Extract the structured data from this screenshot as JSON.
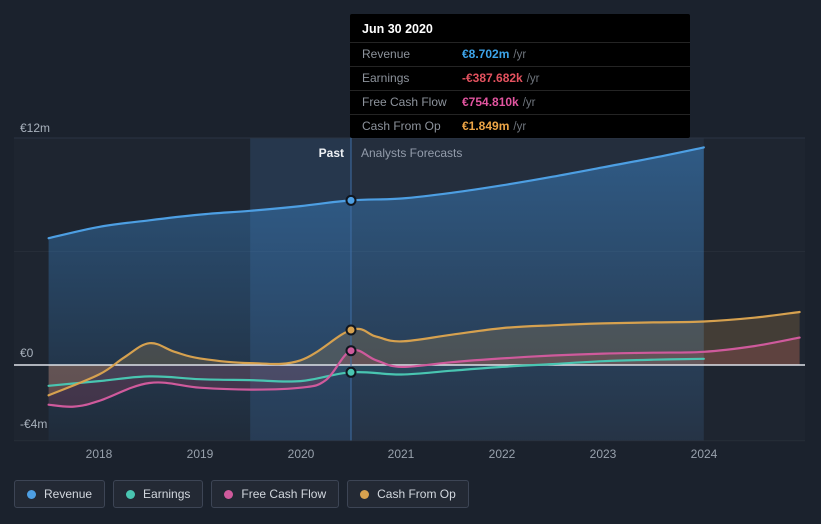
{
  "tooltip": {
    "title": "Jun 30 2020",
    "rows": [
      {
        "label": "Revenue",
        "value": "€8.702m",
        "unit": "/yr",
        "color": "#3da4ea"
      },
      {
        "label": "Earnings",
        "value": "-€387.682k",
        "unit": "/yr",
        "color": "#e4525f"
      },
      {
        "label": "Free Cash Flow",
        "value": "€754.810k",
        "unit": "/yr",
        "color": "#e255a0"
      },
      {
        "label": "Cash From Op",
        "value": "€1.849m",
        "unit": "/yr",
        "color": "#eda546"
      }
    ]
  },
  "chart_labels": {
    "past": "Past",
    "forecast": "Analysts Forecasts"
  },
  "y_axis": [
    "€12m",
    "€0",
    "-€4m"
  ],
  "x_axis": [
    "2018",
    "2019",
    "2020",
    "2021",
    "2022",
    "2023",
    "2024"
  ],
  "legend": [
    {
      "label": "Revenue",
      "color": "#4d9fe3"
    },
    {
      "label": "Earnings",
      "color": "#49c5b1"
    },
    {
      "label": "Free Cash Flow",
      "color": "#cf5a9c"
    },
    {
      "label": "Cash From Op",
      "color": "#d6a14f"
    }
  ],
  "chart_data": {
    "type": "line",
    "title": "Revenue, earnings and cash flow — past and analyst forecasts",
    "y_unit": "EUR millions",
    "ylim": [
      -4,
      12
    ],
    "y_ticks": [
      "€12m",
      "€0",
      "-€4m"
    ],
    "x_ticks": [
      "2018",
      "2019",
      "2020",
      "2021",
      "2022",
      "2023",
      "2024"
    ],
    "divider_x": 2020.5,
    "marker_x": 2020.5,
    "highlight_band": [
      2019.5,
      2020.5
    ],
    "forecast_end": 2024,
    "legend_position": "bottom",
    "series": [
      {
        "name": "Revenue",
        "color": "#4d9fe3",
        "fill": "gradient",
        "fill_to": "bottom",
        "x": [
          2017.5,
          2018,
          2018.5,
          2019,
          2019.5,
          2020,
          2020.5,
          2021,
          2021.5,
          2022,
          2022.5,
          2023,
          2023.5,
          2024
        ],
        "values": [
          6.7,
          7.3,
          7.65,
          7.95,
          8.15,
          8.4,
          8.702,
          8.8,
          9.1,
          9.5,
          9.95,
          10.45,
          10.95,
          11.5
        ]
      },
      {
        "name": "Earnings",
        "color": "#49c5b1",
        "fill": "rgba(73,197,177,0.08)",
        "fill_to": "zero",
        "x": [
          2017.5,
          2018,
          2018.5,
          2019,
          2019.5,
          2020,
          2020.5,
          2021,
          2021.5,
          2022,
          2022.5,
          2023,
          2023.5,
          2024
        ],
        "values": [
          -1.1,
          -0.85,
          -0.6,
          -0.75,
          -0.8,
          -0.85,
          -0.388,
          -0.5,
          -0.3,
          -0.1,
          0.05,
          0.2,
          0.28,
          0.33
        ]
      },
      {
        "name": "Free Cash Flow",
        "color": "#cf5a9c",
        "fill": "rgba(186,70,100,0.22)",
        "fill_to": "zero",
        "x": [
          2017.5,
          2017.75,
          2018,
          2018.5,
          2019,
          2019.5,
          2020,
          2020.25,
          2020.5,
          2020.75,
          2021,
          2021.5,
          2022,
          2022.5,
          2023,
          2023.5,
          2024,
          2024.5,
          2024.95
        ],
        "values": [
          -2.1,
          -2.2,
          -1.9,
          -0.95,
          -1.2,
          -1.3,
          -1.2,
          -0.8,
          0.755,
          0.25,
          -0.1,
          0.15,
          0.35,
          0.5,
          0.6,
          0.65,
          0.7,
          1.0,
          1.45
        ]
      },
      {
        "name": "Cash From Op",
        "color": "#d6a14f",
        "fill": "rgba(214,161,79,0.20)",
        "fill_to": "zero",
        "x": [
          2017.5,
          2018,
          2018.25,
          2018.5,
          2018.75,
          2019,
          2019.5,
          2020,
          2020.5,
          2020.75,
          2021,
          2021.5,
          2022,
          2022.5,
          2023,
          2023.5,
          2024,
          2024.5,
          2024.95
        ],
        "values": [
          -1.6,
          -0.5,
          0.4,
          1.15,
          0.7,
          0.35,
          0.1,
          0.25,
          1.849,
          1.5,
          1.25,
          1.6,
          1.95,
          2.1,
          2.2,
          2.25,
          2.3,
          2.5,
          2.8
        ]
      }
    ]
  }
}
